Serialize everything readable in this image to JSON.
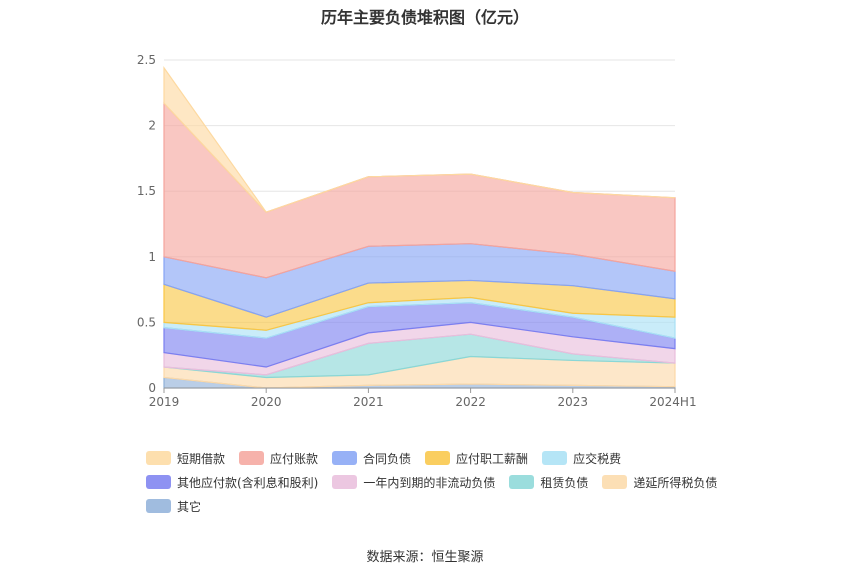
{
  "title": "历年主要负债堆积图（亿元）",
  "source_label": "数据来源：恒生聚源",
  "chart_data": {
    "type": "area",
    "stacked": true,
    "categories": [
      "2019",
      "2020",
      "2021",
      "2022",
      "2023",
      "2024H1"
    ],
    "y_ticks": [
      "0",
      "0.5",
      "1",
      "1.5",
      "2",
      "2.5"
    ],
    "ylim": [
      0,
      2.5
    ],
    "grid": true,
    "legend_position": "bottom",
    "series": [
      {
        "name": "其它",
        "color": "#8fb0d9",
        "values": [
          0.08,
          0.0,
          0.02,
          0.03,
          0.02,
          0.01
        ]
      },
      {
        "name": "递延所得税负债",
        "color": "#fcd9a8",
        "values": [
          0.08,
          0.08,
          0.08,
          0.21,
          0.19,
          0.18
        ]
      },
      {
        "name": "租赁负债",
        "color": "#89d7d7",
        "values": [
          0.0,
          0.02,
          0.24,
          0.17,
          0.05,
          0.0
        ]
      },
      {
        "name": "一年内到期的非流动负债",
        "color": "#e9bddc",
        "values": [
          0.11,
          0.06,
          0.08,
          0.09,
          0.13,
          0.11
        ]
      },
      {
        "name": "其他应付款(含利息和股利)",
        "color": "#7a7ff0",
        "values": [
          0.19,
          0.22,
          0.2,
          0.15,
          0.15,
          0.08
        ]
      },
      {
        "name": "应交税费",
        "color": "#a8e0f5",
        "values": [
          0.04,
          0.06,
          0.03,
          0.04,
          0.03,
          0.16
        ]
      },
      {
        "name": "应付职工薪酬",
        "color": "#f9c644",
        "values": [
          0.29,
          0.1,
          0.15,
          0.13,
          0.21,
          0.14
        ]
      },
      {
        "name": "合同负债",
        "color": "#85a3f5",
        "values": [
          0.21,
          0.3,
          0.28,
          0.28,
          0.24,
          0.21
        ]
      },
      {
        "name": "应付账款",
        "color": "#f5a49c",
        "values": [
          1.17,
          0.5,
          0.53,
          0.53,
          0.47,
          0.56
        ]
      },
      {
        "name": "短期借款",
        "color": "#fdd9a0",
        "values": [
          0.27,
          0.0,
          0.0,
          0.0,
          0.0,
          0.0
        ]
      }
    ],
    "legend_rows": [
      [
        "短期借款",
        "应付账款",
        "合同负债",
        "应付职工薪酬",
        "应交税费"
      ],
      [
        "其他应付款(含利息和股利)",
        "一年内到期的非流动负债",
        "租赁负债",
        "递延所得税负债"
      ],
      [
        "其它"
      ]
    ]
  }
}
